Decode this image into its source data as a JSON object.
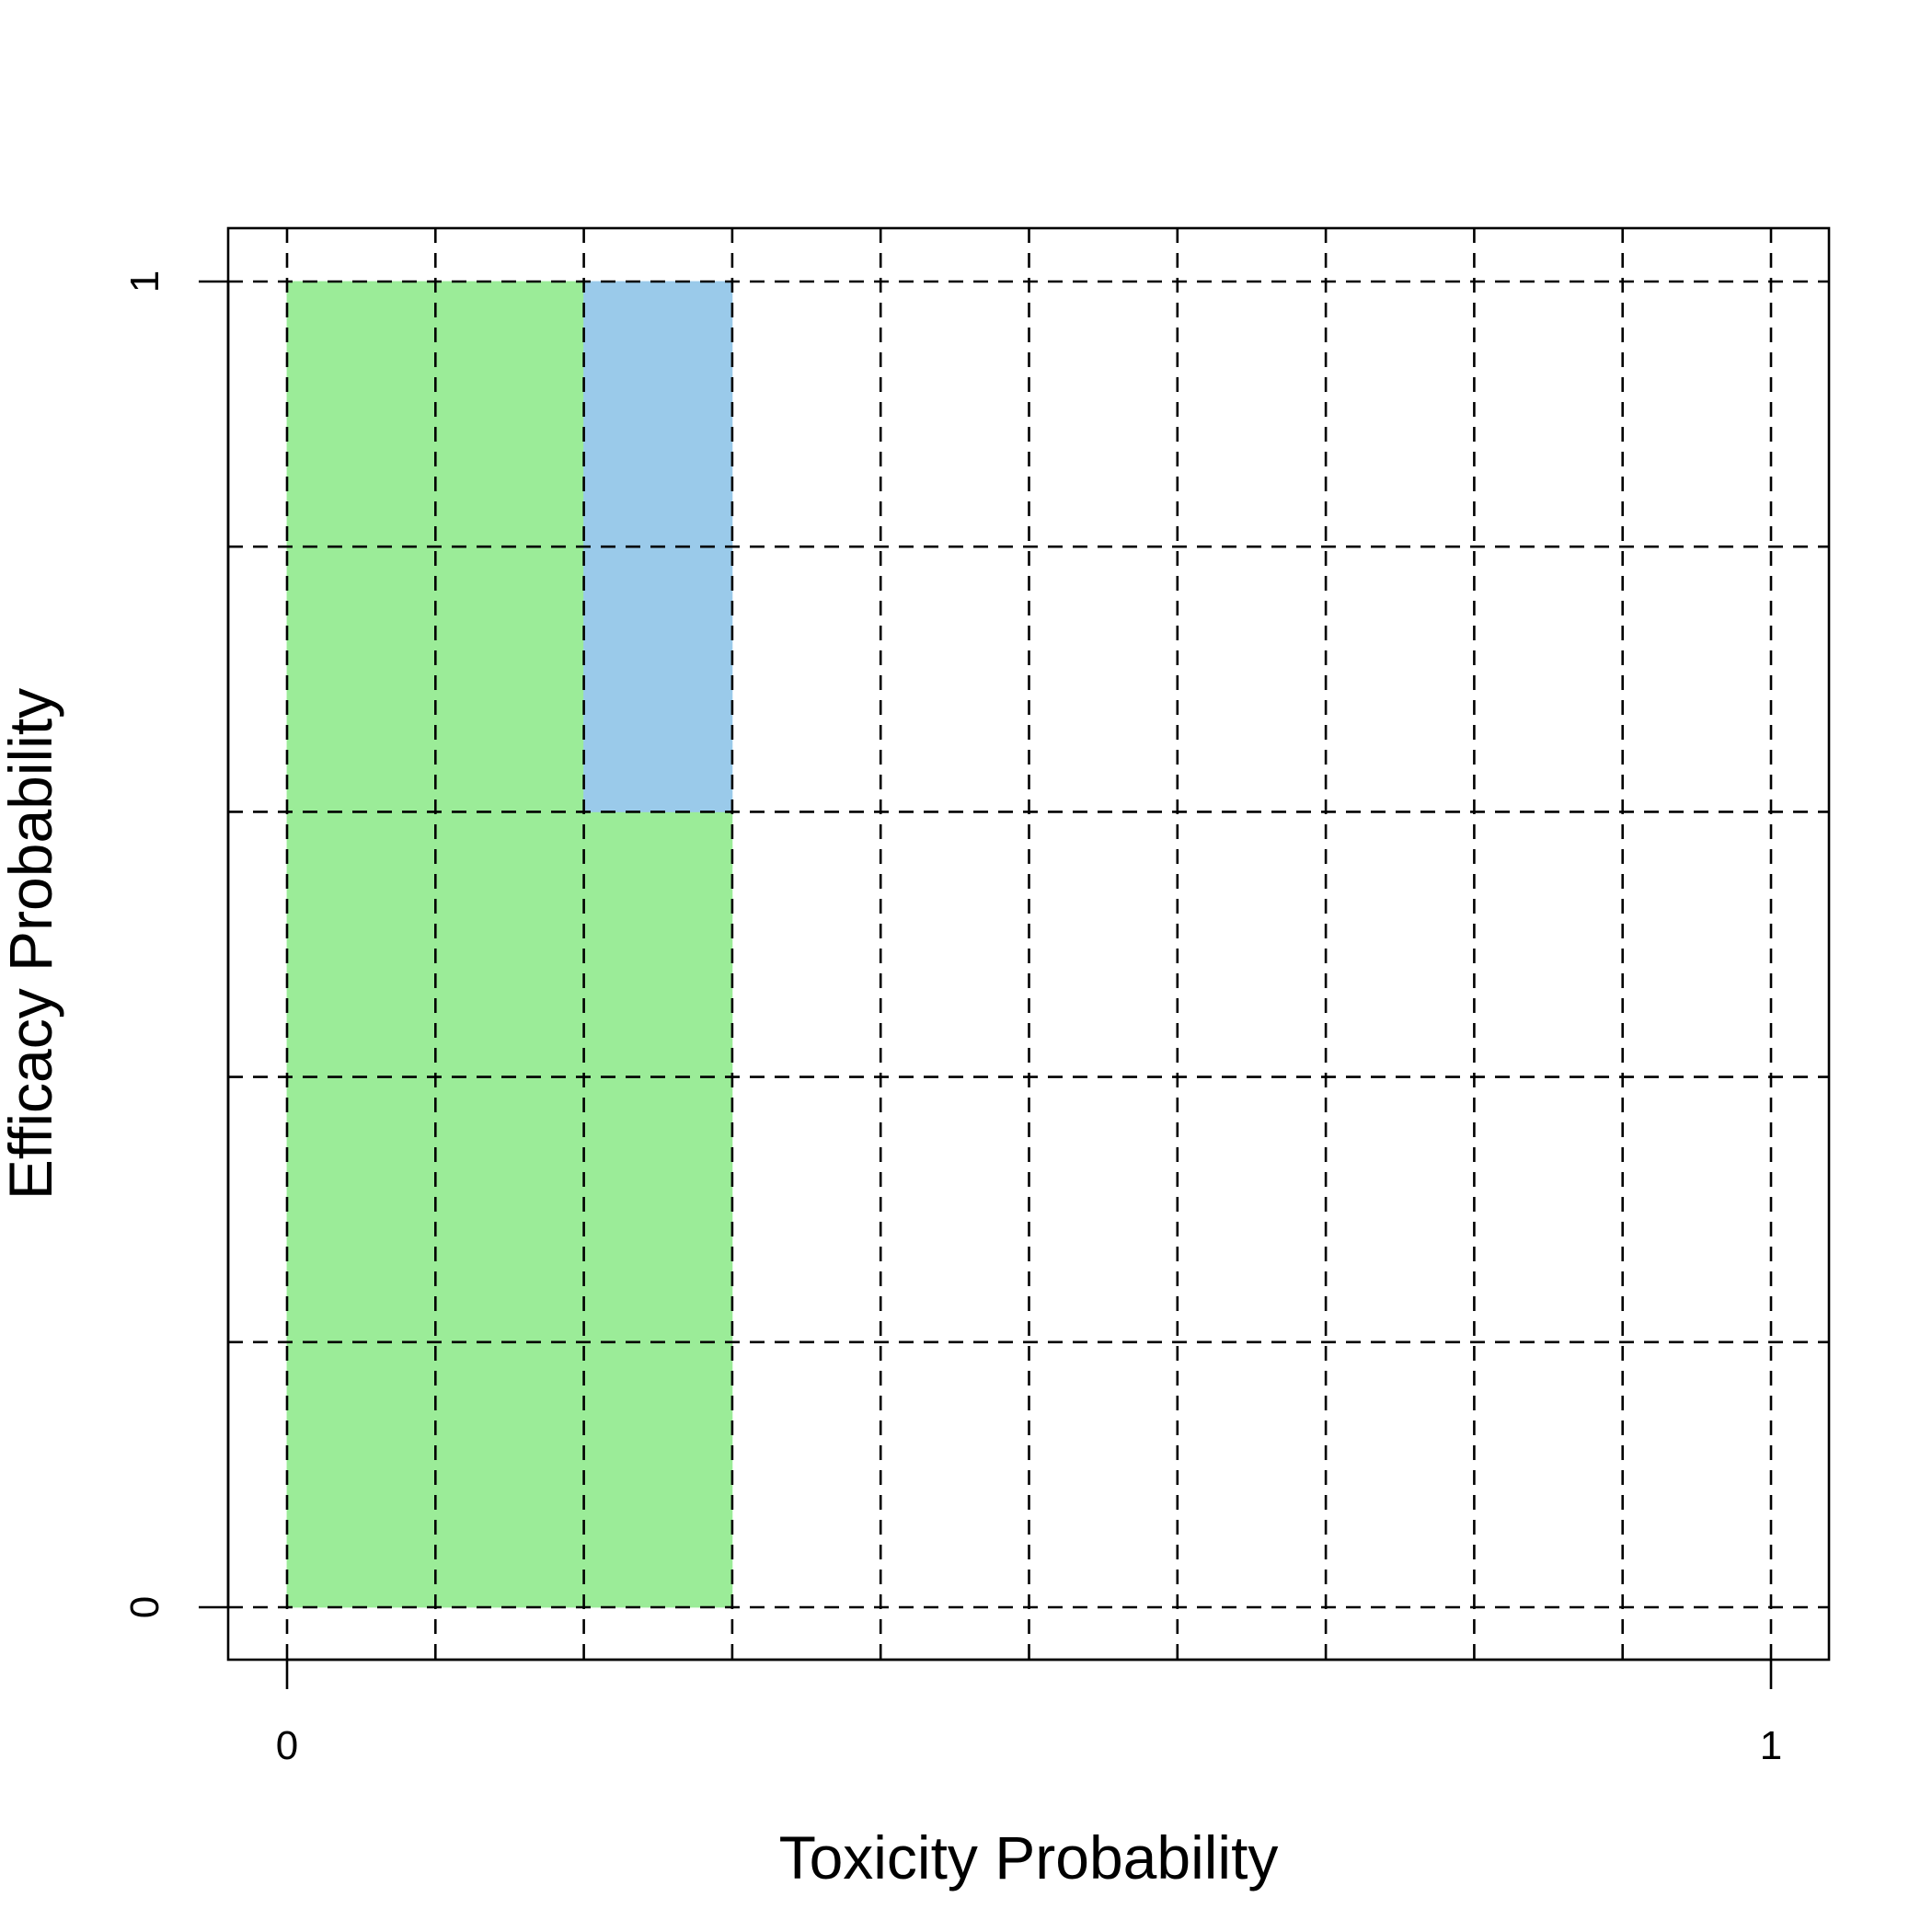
{
  "chart_data": {
    "type": "heatmap",
    "title": "",
    "xlabel": "Toxicity Probability",
    "ylabel": "Efficacy Probability",
    "xlim": [
      0,
      1
    ],
    "ylim": [
      0,
      1
    ],
    "x_tick_labels": [
      "0",
      "1"
    ],
    "y_tick_labels": [
      "0",
      "1"
    ],
    "grid": true,
    "grid_style": "dashed",
    "x_breaks": [
      0,
      0.1,
      0.2,
      0.3,
      0.4,
      0.5,
      0.6,
      0.7,
      0.8,
      0.9,
      1.0
    ],
    "y_breaks": [
      0,
      0.2,
      0.4,
      0.6,
      0.8,
      1.0
    ],
    "colors": {
      "acceptable": "#9BEC98",
      "highlight": "#9ACAEA"
    },
    "cells": [
      {
        "x": [
          0.0,
          0.1
        ],
        "y": [
          0.0,
          0.2
        ],
        "color": "acceptable"
      },
      {
        "x": [
          0.1,
          0.2
        ],
        "y": [
          0.0,
          0.2
        ],
        "color": "acceptable"
      },
      {
        "x": [
          0.2,
          0.3
        ],
        "y": [
          0.0,
          0.2
        ],
        "color": "acceptable"
      },
      {
        "x": [
          0.0,
          0.1
        ],
        "y": [
          0.2,
          0.4
        ],
        "color": "acceptable"
      },
      {
        "x": [
          0.1,
          0.2
        ],
        "y": [
          0.2,
          0.4
        ],
        "color": "acceptable"
      },
      {
        "x": [
          0.2,
          0.3
        ],
        "y": [
          0.2,
          0.4
        ],
        "color": "acceptable"
      },
      {
        "x": [
          0.0,
          0.1
        ],
        "y": [
          0.4,
          0.6
        ],
        "color": "acceptable"
      },
      {
        "x": [
          0.1,
          0.2
        ],
        "y": [
          0.4,
          0.6
        ],
        "color": "acceptable"
      },
      {
        "x": [
          0.2,
          0.3
        ],
        "y": [
          0.4,
          0.6
        ],
        "color": "acceptable"
      },
      {
        "x": [
          0.0,
          0.1
        ],
        "y": [
          0.6,
          0.8
        ],
        "color": "acceptable"
      },
      {
        "x": [
          0.1,
          0.2
        ],
        "y": [
          0.6,
          0.8
        ],
        "color": "acceptable"
      },
      {
        "x": [
          0.2,
          0.3
        ],
        "y": [
          0.6,
          0.8
        ],
        "color": "highlight"
      },
      {
        "x": [
          0.0,
          0.1
        ],
        "y": [
          0.8,
          1.0
        ],
        "color": "acceptable"
      },
      {
        "x": [
          0.1,
          0.2
        ],
        "y": [
          0.8,
          1.0
        ],
        "color": "acceptable"
      },
      {
        "x": [
          0.2,
          0.3
        ],
        "y": [
          0.8,
          1.0
        ],
        "color": "highlight"
      }
    ]
  }
}
